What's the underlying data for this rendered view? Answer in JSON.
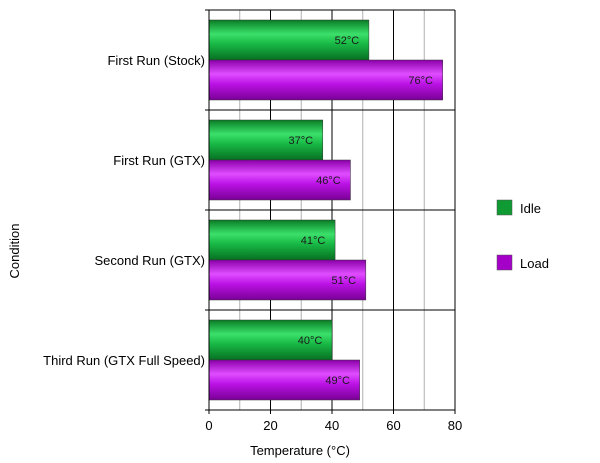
{
  "chart_data": {
    "type": "bar",
    "orientation": "horizontal",
    "categories": [
      "First Run (Stock)",
      "First Run (GTX)",
      "Second Run (GTX)",
      "Third Run (GTX Full Speed)"
    ],
    "series": [
      {
        "name": "Idle",
        "values": [
          52,
          37,
          41,
          40
        ],
        "labels": [
          "52°C",
          "37°C",
          "41°C",
          "40°C"
        ],
        "color": "#0f9a33"
      },
      {
        "name": "Load",
        "values": [
          76,
          46,
          51,
          49
        ],
        "labels": [
          "76°C",
          "46°C",
          "51°C",
          "49°C"
        ],
        "color": "#a400c8"
      }
    ],
    "xlabel": "Temperature (°C)",
    "ylabel": "Condition",
    "xlim": [
      0,
      80
    ],
    "xticks": [
      "0",
      "20",
      "40",
      "60",
      "80"
    ],
    "grid": true,
    "legend_position": "right"
  }
}
